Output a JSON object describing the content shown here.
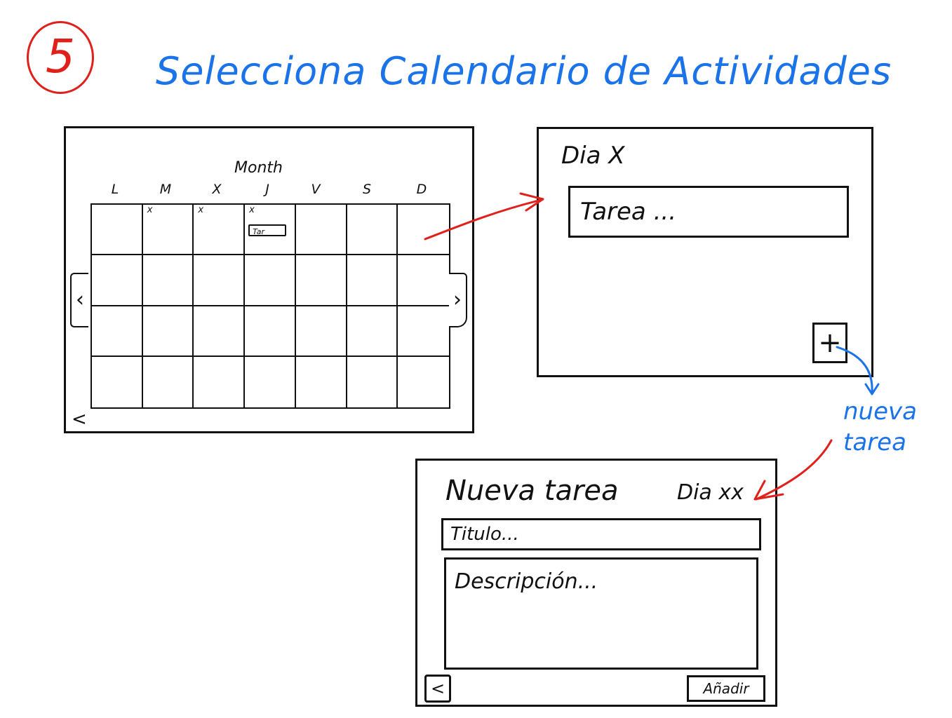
{
  "step": "5",
  "heading": "Selecciona Calendario de Actividades",
  "calendar": {
    "month_label": "Month",
    "day_headers": [
      "L",
      "M",
      "X",
      "J",
      "V",
      "S",
      "D"
    ],
    "marks": [
      {
        "cell": 1,
        "text": "x"
      },
      {
        "cell": 2,
        "text": "x"
      },
      {
        "cell": 3,
        "text": "x"
      }
    ],
    "chip": {
      "cell": 3,
      "text": "Tar"
    },
    "prev_icon": "‹",
    "next_icon": "›",
    "back_icon": "<"
  },
  "day_view": {
    "title": "Dia X",
    "task": "Tarea ...",
    "add_icon": "+"
  },
  "annotation": {
    "line1": "nueva",
    "line2": "tarea"
  },
  "new_task": {
    "title": "Nueva tarea",
    "day": "Dia xx",
    "title_placeholder": "Titulo...",
    "description_placeholder": "Descripción...",
    "back_icon": "<",
    "add_label": "Añadir"
  },
  "colors": {
    "badge": "#e0201b",
    "heading": "#1a73e8",
    "arrow_red": "#e0201b",
    "arrow_blue": "#1a73e8",
    "ink": "#111111"
  }
}
